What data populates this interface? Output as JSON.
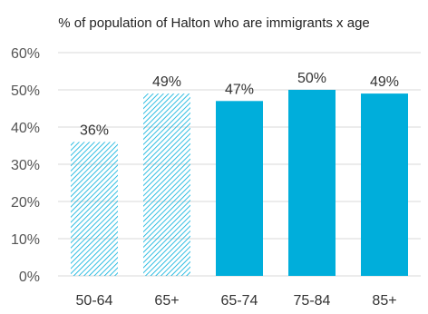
{
  "chart_data": {
    "type": "bar",
    "title": "% of population of Halton who are immigrants x age",
    "xlabel": "",
    "ylabel": "",
    "categories": [
      "50-64",
      "65+",
      "65-74",
      "75-84",
      "85+"
    ],
    "values": [
      36,
      49,
      47,
      50,
      49
    ],
    "value_labels": [
      "36%",
      "49%",
      "47%",
      "50%",
      "49%"
    ],
    "bar_styles": [
      "hatched",
      "hatched",
      "solid",
      "solid",
      "solid"
    ],
    "ylim": [
      0,
      60
    ],
    "yticks": [
      0,
      10,
      20,
      30,
      40,
      50,
      60
    ],
    "ytick_labels": [
      "0%",
      "10%",
      "20%",
      "30%",
      "40%",
      "50%",
      "60%"
    ],
    "grid": true,
    "color": "#00AEDB"
  }
}
